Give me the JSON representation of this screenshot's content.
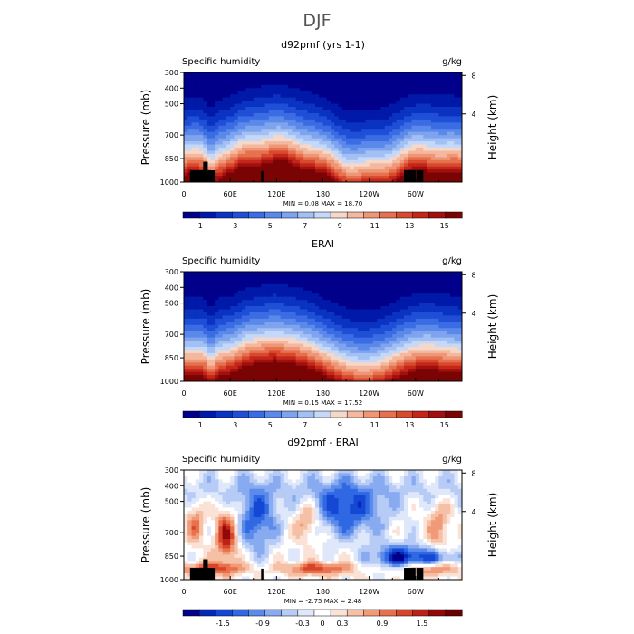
{
  "figure": {
    "title": "DJF"
  },
  "colors": {
    "abs_palette": [
      "#00008b",
      "#0019a8",
      "#0a33c2",
      "#1f4fd6",
      "#3b6ce3",
      "#5b89ea",
      "#7ea4f0",
      "#a2c0f4",
      "#c6d8f7",
      "#f6d8c8",
      "#f4b8a0",
      "#ef9677",
      "#e6714f",
      "#d84a2d",
      "#c4261a",
      "#a10f0f",
      "#7a0404"
    ],
    "diff_palette": [
      "#00008b",
      "#0628b8",
      "#1448d4",
      "#2f68e2",
      "#5a8aea",
      "#88aaf0",
      "#b6cbf5",
      "#dfe8fa",
      "#ffffff",
      "#fbe2d6",
      "#f6c0a6",
      "#f19a78",
      "#e8704c",
      "#d6452a",
      "#bb2216",
      "#900808",
      "#6a0000"
    ],
    "land": "#000000"
  },
  "chart_data": [
    {
      "type": "heatmap",
      "title": "d92pmf (yrs 1-1)",
      "left_label": "Specific humidity",
      "right_label": "g/kg",
      "ylabel": "Pressure (mb)",
      "y2label": "Height (km)",
      "x_ticks": [
        "0",
        "60E",
        "120E",
        "180",
        "120W",
        "60W"
      ],
      "x_tick_lon": [
        0,
        60,
        120,
        180,
        240,
        300
      ],
      "x_range": [
        0,
        360
      ],
      "y_ticks": [
        "300",
        "400",
        "500",
        "700",
        "850",
        "1000"
      ],
      "y_tick_p": [
        300,
        400,
        500,
        700,
        850,
        1000
      ],
      "y_range": [
        300,
        1000
      ],
      "y2_ticks": [
        "8",
        "4"
      ],
      "y2_tick_km": [
        8,
        4
      ],
      "min": "0.08",
      "max": "18.70",
      "stats": "MIN =   0.08   MAX =  18.70",
      "colorbar_labels": [
        "1",
        "3",
        "5",
        "7",
        "9",
        "11",
        "13",
        "15"
      ],
      "colorbar_values": [
        1,
        3,
        5,
        7,
        9,
        11,
        13,
        15
      ],
      "colorbar_range": [
        0,
        16
      ],
      "field": "absolute"
    },
    {
      "type": "heatmap",
      "title": "ERAI",
      "left_label": "Specific humidity",
      "right_label": "g/kg",
      "ylabel": "Pressure (mb)",
      "y2label": "Height (km)",
      "x_ticks": [
        "0",
        "60E",
        "120E",
        "180",
        "120W",
        "60W"
      ],
      "x_tick_lon": [
        0,
        60,
        120,
        180,
        240,
        300
      ],
      "x_range": [
        0,
        360
      ],
      "y_ticks": [
        "300",
        "400",
        "500",
        "700",
        "850",
        "1000"
      ],
      "y_tick_p": [
        300,
        400,
        500,
        700,
        850,
        1000
      ],
      "y_range": [
        300,
        1000
      ],
      "y2_ticks": [
        "8",
        "4"
      ],
      "y2_tick_km": [
        8,
        4
      ],
      "min": "0.15",
      "max": "17.52",
      "stats": "MIN =   0.15   MAX =  17.52",
      "colorbar_labels": [
        "1",
        "3",
        "5",
        "7",
        "9",
        "11",
        "13",
        "15"
      ],
      "colorbar_values": [
        1,
        3,
        5,
        7,
        9,
        11,
        13,
        15
      ],
      "colorbar_range": [
        0,
        16
      ],
      "field": "absolute"
    },
    {
      "type": "heatmap",
      "title": "d92pmf - ERAI",
      "left_label": "Specific humidity",
      "right_label": "g/kg",
      "ylabel": "Pressure (mb)",
      "y2label": "Height (km)",
      "x_ticks": [
        "0",
        "60E",
        "120E",
        "180",
        "120W",
        "60W"
      ],
      "x_tick_lon": [
        0,
        60,
        120,
        180,
        240,
        300
      ],
      "x_range": [
        0,
        360
      ],
      "y_ticks": [
        "300",
        "400",
        "500",
        "700",
        "850",
        "1000"
      ],
      "y_tick_p": [
        300,
        400,
        500,
        700,
        850,
        1000
      ],
      "y_range": [
        300,
        1000
      ],
      "y2_ticks": [
        "8",
        "4"
      ],
      "y2_tick_km": [
        8,
        4
      ],
      "min": "-2.75",
      "max": "2.48",
      "stats": "MIN =  -2.75   MAX =   2.48",
      "colorbar_labels": [
        "-1.5",
        "-0.9",
        "-0.3",
        "0",
        "0.3",
        "0.9",
        "1.5"
      ],
      "colorbar_values": [
        -1.5,
        -0.9,
        -0.3,
        0,
        0.3,
        0.9,
        1.5
      ],
      "colorbar_range": [
        -2.1,
        2.1
      ],
      "field": "difference"
    }
  ]
}
